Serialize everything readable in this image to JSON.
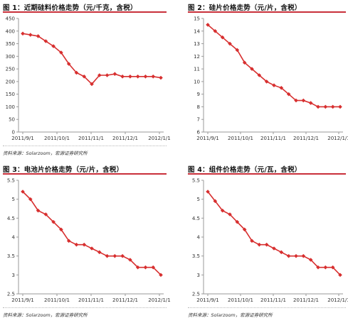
{
  "colors": {
    "series": "#d72f2f",
    "axis": "#9a9a9a",
    "title_rule": "#c9303a"
  },
  "panels": [
    {
      "title": "图 1：近期硅料价格走势（元/千克，含税）",
      "source": "资料来源：Solarzoom，宏源证券研究所"
    },
    {
      "title": "图 2：硅片价格走势（元/片，含税）",
      "source": ""
    },
    {
      "title": "图 3：电池片价格走势（元/片，含税）",
      "source": "资料来源：Solarzoom，宏源证券研究所"
    },
    {
      "title": "图 4：组件价格走势（元/瓦，含税）",
      "source": "资料来源：Solarzoom，宏源证券研究所"
    }
  ],
  "chart_data": [
    {
      "type": "line",
      "x_tick_labels": [
        "2011/9/1",
        "2011/10/1",
        "2011/11/1",
        "2011/12/1",
        "2012/1/1"
      ],
      "ylim": [
        0,
        450
      ],
      "y_ticks": [
        0,
        50,
        100,
        150,
        200,
        250,
        300,
        350,
        400,
        450
      ],
      "marker": "diamond",
      "series": [
        {
          "values": [
            390,
            385,
            380,
            360,
            340,
            315,
            270,
            235,
            220,
            190,
            225,
            225,
            230,
            220,
            220,
            220,
            220,
            220,
            215
          ]
        }
      ]
    },
    {
      "type": "line",
      "x_tick_labels": [
        "2011/9/1",
        "2011/10/1",
        "2011/11/1",
        "2011/12/1",
        "2012/1/1"
      ],
      "ylim": [
        6,
        15
      ],
      "y_ticks": [
        6,
        7,
        8,
        9,
        10,
        11,
        12,
        13,
        14,
        15
      ],
      "marker": "diamond",
      "series": [
        {
          "values": [
            14.5,
            14.0,
            13.5,
            13.0,
            12.5,
            11.5,
            11.0,
            10.5,
            10.0,
            9.7,
            9.5,
            9.0,
            8.5,
            8.5,
            8.3,
            8.0,
            8.0,
            8.0,
            8.0
          ]
        }
      ]
    },
    {
      "type": "line",
      "x_tick_labels": [
        "2011/9/1",
        "2011/10/1",
        "2011/11/1",
        "2011/12/1",
        "2012/1/1"
      ],
      "ylim": [
        2.5,
        5.5
      ],
      "y_ticks": [
        2.5,
        3,
        3.5,
        4,
        4.5,
        5,
        5.5
      ],
      "marker": "diamond",
      "series": [
        {
          "values": [
            5.2,
            5.0,
            4.7,
            4.6,
            4.4,
            4.2,
            3.9,
            3.8,
            3.8,
            3.7,
            3.6,
            3.5,
            3.5,
            3.5,
            3.4,
            3.2,
            3.2,
            3.2,
            3.0
          ]
        }
      ]
    },
    {
      "type": "line",
      "x_tick_labels": [
        "2011/9/1",
        "2011/10/1",
        "2011/11/1",
        "2011/12/1",
        "2012/1/1"
      ],
      "ylim": [
        2.5,
        5.5
      ],
      "y_ticks": [
        2.5,
        3,
        3.5,
        4,
        4.5,
        5,
        5.5
      ],
      "marker": "diamond",
      "series": [
        {
          "values": [
            5.2,
            4.95,
            4.7,
            4.6,
            4.4,
            4.2,
            3.9,
            3.8,
            3.8,
            3.7,
            3.6,
            3.5,
            3.5,
            3.5,
            3.4,
            3.2,
            3.2,
            3.2,
            3.0
          ]
        }
      ]
    }
  ]
}
